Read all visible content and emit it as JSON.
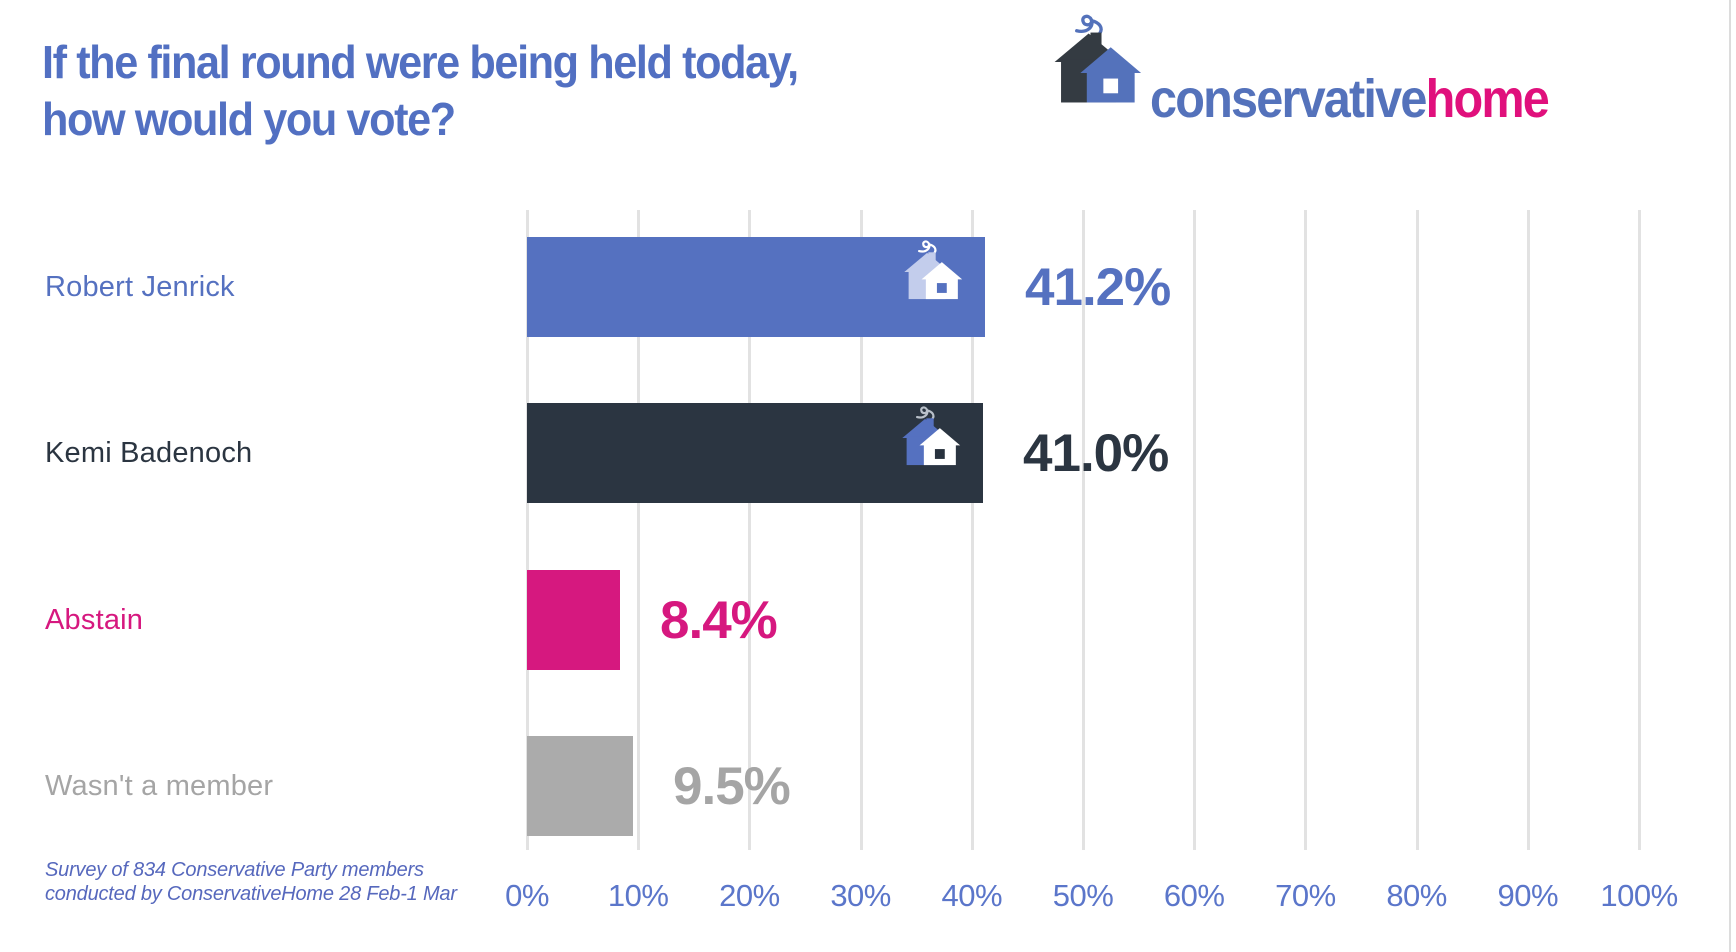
{
  "header": {
    "title_line1": "If the final round were being held today,",
    "title_line2": "how would you vote?",
    "logo": {
      "word_blue": "conservative",
      "word_pink": "home",
      "icon": "house-with-chimney-smoke-icon"
    }
  },
  "chart_data": {
    "type": "bar",
    "orientation": "horizontal",
    "title": "If the final round were being held today, how would you vote?",
    "categories": [
      "Robert Jenrick",
      "Kemi Badenoch",
      "Abstain",
      "Wasn't a member"
    ],
    "values": [
      41.2,
      41.0,
      8.4,
      9.5
    ],
    "value_labels": [
      "41.2%",
      "41.0%",
      "8.4%",
      "9.5%"
    ],
    "bar_colors": [
      "#5571c0",
      "#2b3541",
      "#d6187f",
      "#ababab"
    ],
    "text_colors": [
      "#5571c0",
      "#2b3541",
      "#d6187f",
      "#a5a5a5"
    ],
    "bars_with_house_icon": [
      0,
      1
    ],
    "x_ticks": [
      "0%",
      "10%",
      "20%",
      "30%",
      "40%",
      "50%",
      "60%",
      "70%",
      "80%",
      "90%",
      "100%"
    ],
    "xlim": [
      0,
      100
    ],
    "grid": true,
    "legend": "none",
    "footnote_line1": "Survey of 834 Conservative Party members",
    "footnote_line2": "conducted by ConservativeHome 28 Feb-1 Mar"
  },
  "colors": {
    "title": "#5270c2",
    "axis_labels": "#5b76ca",
    "gridline": "#e2e2e2",
    "footnote": "#5668bd",
    "logo_blue": "#5472bb",
    "logo_pink": "#e0107c",
    "background": "#ffffff"
  }
}
